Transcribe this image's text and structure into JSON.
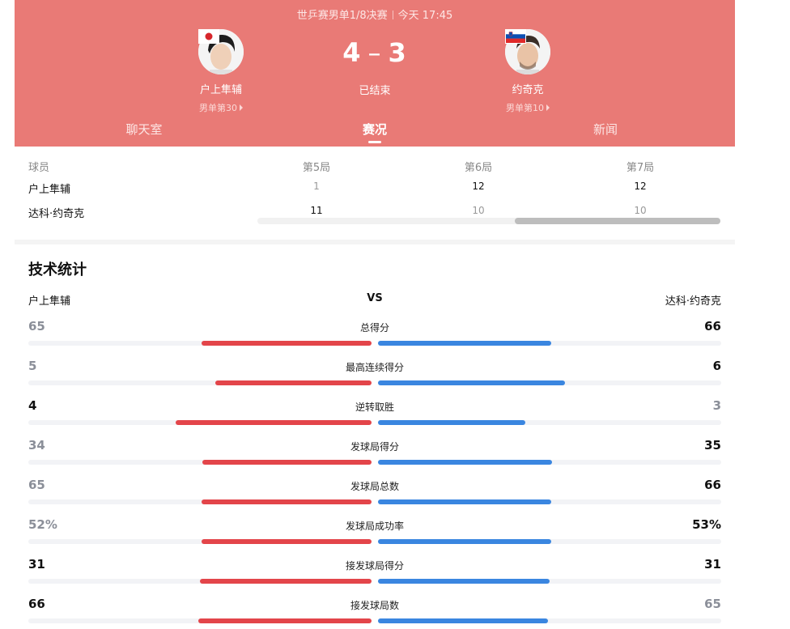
{
  "header": {
    "match": "世乒赛男单1/8决赛",
    "time": "今天 17:45",
    "score": {
      "left": "4",
      "right": "3"
    },
    "status": "已结束",
    "colors": {
      "bg": "#e97a76"
    }
  },
  "players": {
    "left": {
      "name": "户上隼辅",
      "rank": "男单第30",
      "flag": "japan-flag"
    },
    "right": {
      "name": "约奇克",
      "rank": "男单第10",
      "flag": "slovenia-flag"
    }
  },
  "tabs": [
    {
      "label": "聊天室",
      "active": false
    },
    {
      "label": "赛况",
      "active": true
    },
    {
      "label": "新闻",
      "active": false
    }
  ],
  "games": {
    "header": {
      "player": "球员",
      "cols": [
        "第5局",
        "第6局",
        "第7局"
      ]
    },
    "rows": [
      {
        "name": "户上隼辅",
        "scores": [
          "1",
          "12",
          "12"
        ]
      },
      {
        "name": "达科·约奇克",
        "scores": [
          "11",
          "10",
          "10"
        ]
      }
    ]
  },
  "stats": {
    "title": "技术统计",
    "left_name": "户上隼辅",
    "vs": "VS",
    "right_name": "达科·约奇克",
    "colors": {
      "left": "#e3454a",
      "right": "#3a86e0"
    },
    "items": [
      {
        "label": "总得分",
        "left": "65",
        "right": "66",
        "lv": 65,
        "rv": 66
      },
      {
        "label": "最高连续得分",
        "left": "5",
        "right": "6",
        "lv": 5,
        "rv": 6
      },
      {
        "label": "逆转取胜",
        "left": "4",
        "right": "3",
        "lv": 4,
        "rv": 3
      },
      {
        "label": "发球局得分",
        "left": "34",
        "right": "35",
        "lv": 34,
        "rv": 35
      },
      {
        "label": "发球局总数",
        "left": "65",
        "right": "66",
        "lv": 65,
        "rv": 66
      },
      {
        "label": "发球局成功率",
        "left": "52%",
        "right": "53%",
        "lv": 52,
        "rv": 53
      },
      {
        "label": "接发球局得分",
        "left": "31",
        "right": "31",
        "lv": 31,
        "rv": 31
      },
      {
        "label": "接发球局数",
        "left": "66",
        "right": "65",
        "lv": 66,
        "rv": 65
      }
    ]
  }
}
